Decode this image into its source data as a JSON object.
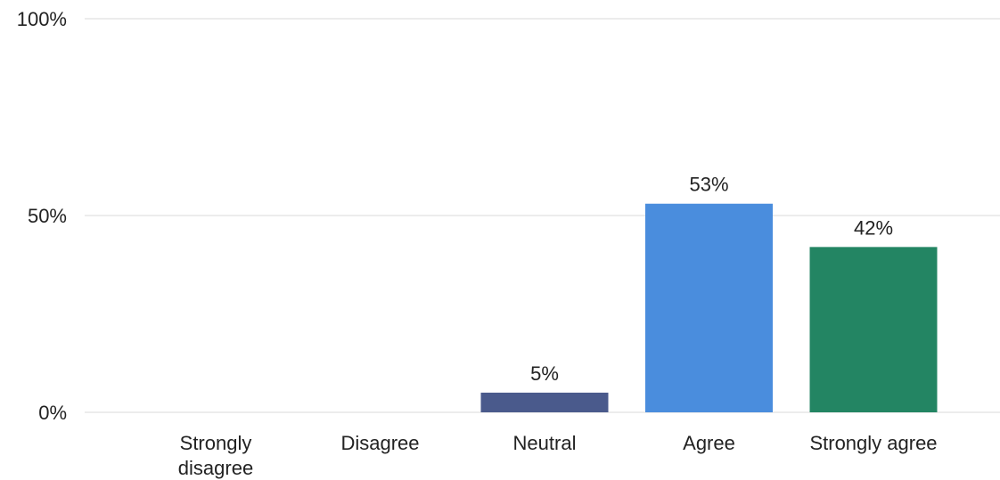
{
  "chart_data": {
    "type": "bar",
    "categories": [
      "Strongly disagree",
      "Disagree",
      "Neutral",
      "Agree",
      "Strongly agree"
    ],
    "values": [
      0,
      0,
      5,
      53,
      42
    ],
    "value_labels": [
      "",
      "",
      "5%",
      "53%",
      "42%"
    ],
    "colors": [
      "#4a5a8c",
      "#4a5a8c",
      "#4a5a8c",
      "#4a8ddd",
      "#238563"
    ],
    "ylim": [
      0,
      100
    ],
    "yticks": [
      {
        "value": 0,
        "label": "0%"
      },
      {
        "value": 50,
        "label": "50%"
      },
      {
        "value": 100,
        "label": "100%"
      }
    ],
    "title": "",
    "xlabel": "",
    "ylabel": "",
    "grid": true,
    "legend": "none"
  }
}
